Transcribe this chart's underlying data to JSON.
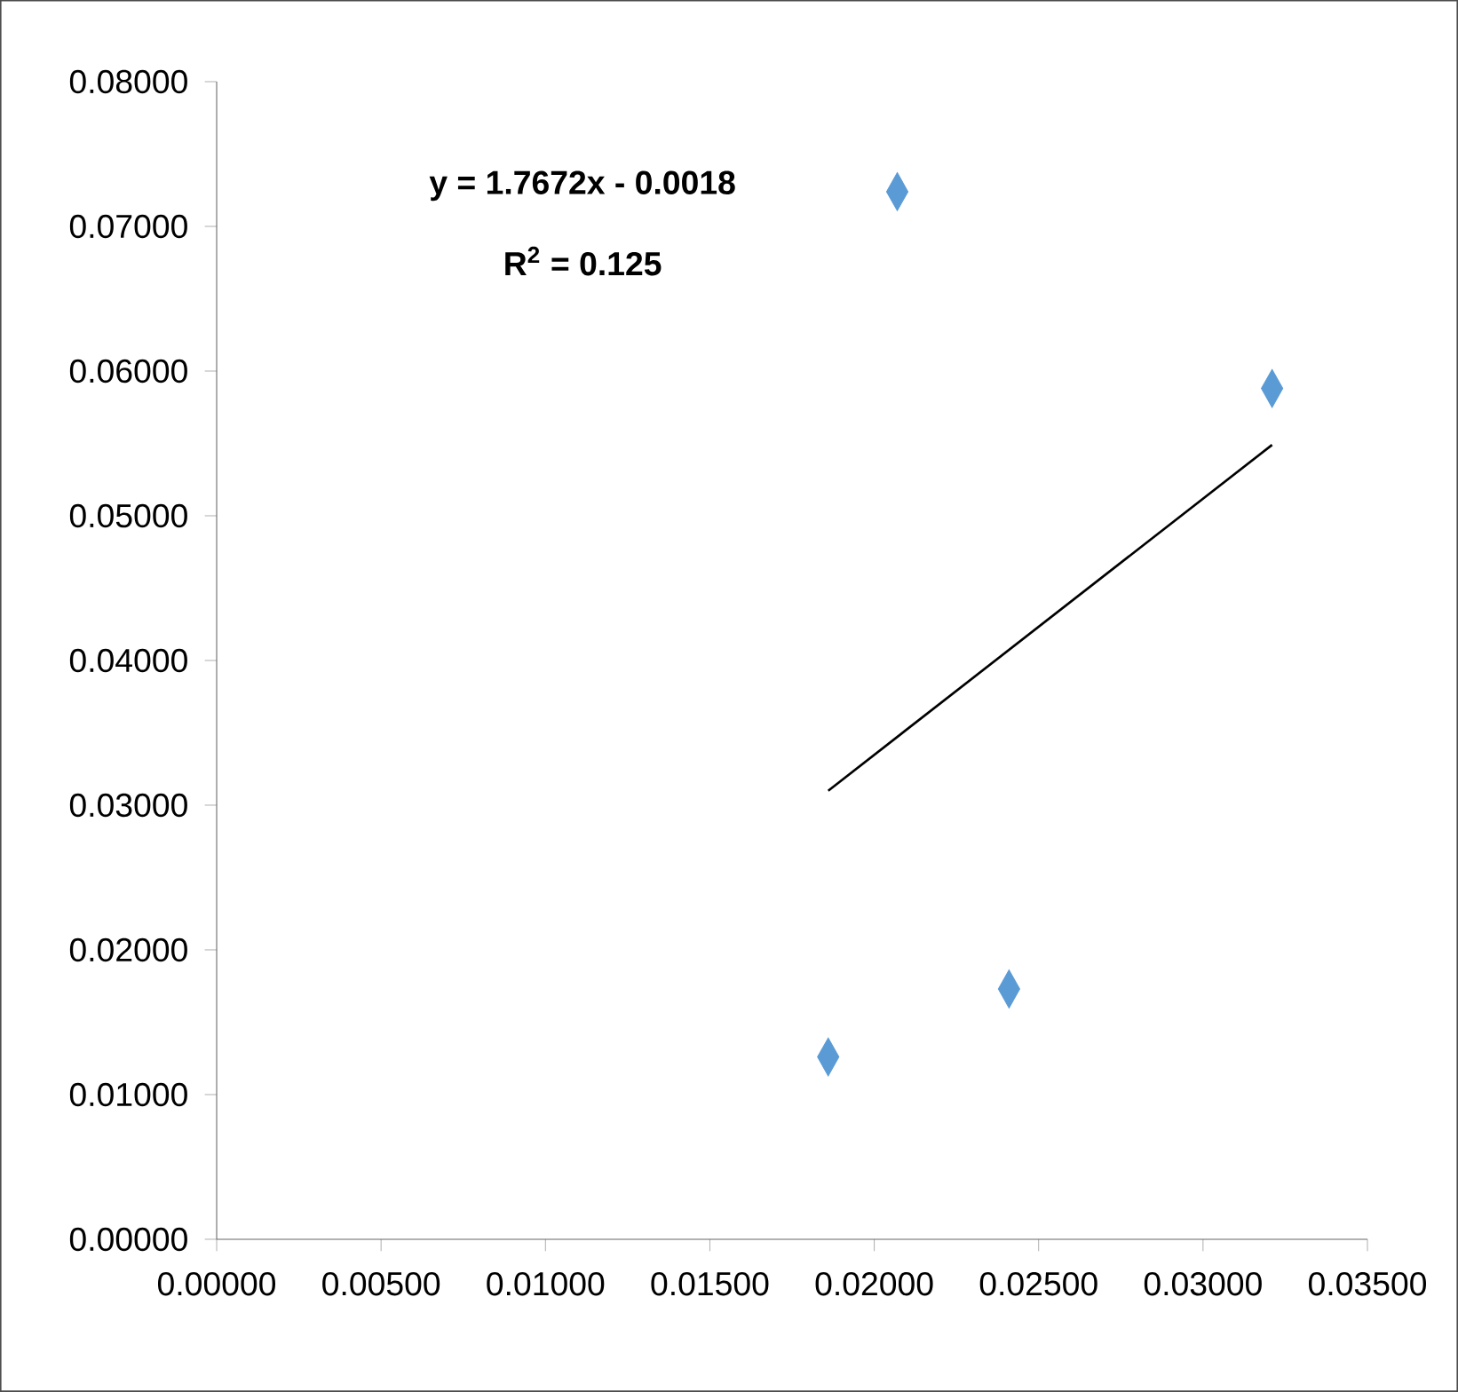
{
  "chart_data": {
    "type": "scatter",
    "series": [
      {
        "color": "#5b9bd5",
        "marker": "diamond",
        "x": [
          0.0186,
          0.0207,
          0.0241,
          0.0321
        ],
        "values": [
          0.0126,
          0.0724,
          0.0173,
          0.0588
        ]
      },
      {
        "type": "line",
        "marker": "none",
        "color": "#000000",
        "x": [
          0.0186,
          0.0321
        ],
        "values": [
          0.031,
          0.0549
        ]
      }
    ],
    "xlim": [
      0,
      0.035
    ],
    "ylim": [
      0,
      0.08
    ],
    "xticks": [
      {
        "value": 0,
        "label": "0.00000"
      },
      {
        "value": 0.005,
        "label": "0.00500"
      },
      {
        "value": 0.01,
        "label": "0.01000"
      },
      {
        "value": 0.015,
        "label": "0.01500"
      },
      {
        "value": 0.02,
        "label": "0.02000"
      },
      {
        "value": 0.025,
        "label": "0.02500"
      },
      {
        "value": 0.03,
        "label": "0.03000"
      },
      {
        "value": 0.035,
        "label": "0.03500"
      }
    ],
    "yticks": [
      {
        "value": 0,
        "label": "0.00000"
      },
      {
        "value": 0.01,
        "label": "0.01000"
      },
      {
        "value": 0.02,
        "label": "0.02000"
      },
      {
        "value": 0.03,
        "label": "0.03000"
      },
      {
        "value": 0.04,
        "label": "0.04000"
      },
      {
        "value": 0.05,
        "label": "0.05000"
      },
      {
        "value": 0.06,
        "label": "0.06000"
      },
      {
        "value": 0.07,
        "label": "0.07000"
      },
      {
        "value": 0.08,
        "label": "0.08000"
      }
    ],
    "annotations": [
      "y = 1.7672x - 0.0018",
      "R$^{2}$ = 0.125"
    ]
  }
}
